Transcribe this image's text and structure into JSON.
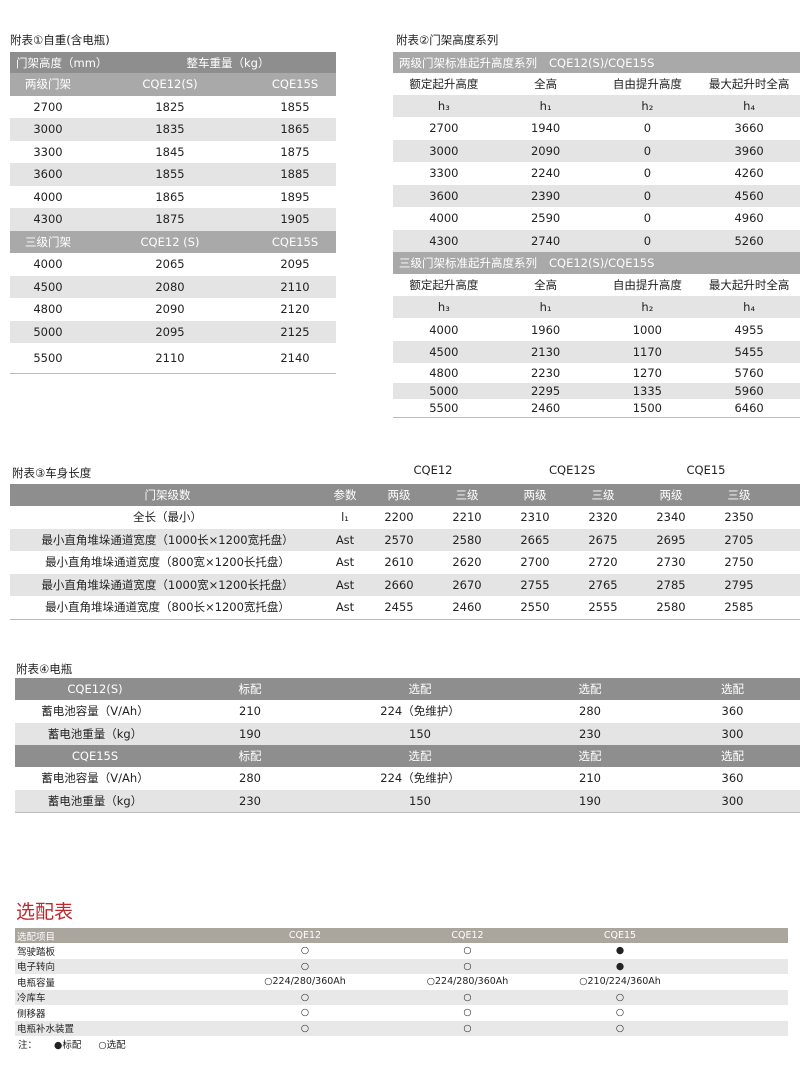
{
  "table1": {
    "title": "附表①自重(含电瓶)",
    "header": [
      "门架高度（mm）",
      "整车重量（kg）"
    ],
    "sections": [
      {
        "columns": [
          "两级门架",
          "CQE12(S)",
          "CQE15S"
        ],
        "rows": [
          [
            "2700",
            "1825",
            "1855"
          ],
          [
            "3000",
            "1835",
            "1865"
          ],
          [
            "3300",
            "1845",
            "1875"
          ],
          [
            "3600",
            "1855",
            "1885"
          ],
          [
            "4000",
            "1865",
            "1895"
          ],
          [
            "4300",
            "1875",
            "1905"
          ]
        ]
      },
      {
        "columns": [
          "三级门架",
          "CQE12 (S)",
          "CQE15S"
        ],
        "rows": [
          [
            "4000",
            "2065",
            "2095"
          ],
          [
            "4500",
            "2080",
            "2110"
          ],
          [
            "4800",
            "2090",
            "2120"
          ],
          [
            "5000",
            "2095",
            "2125"
          ],
          [
            "5500",
            "2110",
            "2140"
          ]
        ]
      }
    ]
  },
  "table2": {
    "title": "附表②门架高度系列",
    "sections": [
      {
        "heading": "两级门架标准起升高度系列",
        "models": "CQE12(S)/CQE15S",
        "columns": [
          "额定起升高度",
          "全高",
          "自由提升高度",
          "最大起升时全高"
        ],
        "symbols": [
          "h₃",
          "h₁",
          "h₂",
          "h₄"
        ],
        "rows": [
          [
            "2700",
            "1940",
            "0",
            "3660"
          ],
          [
            "3000",
            "2090",
            "0",
            "3960"
          ],
          [
            "3300",
            "2240",
            "0",
            "4260"
          ],
          [
            "3600",
            "2390",
            "0",
            "4560"
          ],
          [
            "4000",
            "2590",
            "0",
            "4960"
          ],
          [
            "4300",
            "2740",
            "0",
            "5260"
          ]
        ]
      },
      {
        "heading": "三级门架标准起升高度系列",
        "models": "CQE12(S)/CQE15S",
        "columns": [
          "额定起升高度",
          "全高",
          "自由提升高度",
          "最大起升时全高"
        ],
        "symbols": [
          "h₃",
          "h₁",
          "h₂",
          "h₄"
        ],
        "rows": [
          [
            "4000",
            "1960",
            "1000",
            "4955"
          ],
          [
            "4500",
            "2130",
            "1170",
            "5455"
          ],
          [
            "4800",
            "2230",
            "1270",
            "5760"
          ],
          [
            "5000",
            "2295",
            "1335",
            "5960"
          ],
          [
            "5500",
            "2460",
            "1500",
            "6460"
          ]
        ]
      }
    ]
  },
  "table3": {
    "title": "附表③车身长度",
    "models": [
      "CQE12",
      "CQE12S",
      "CQE15"
    ],
    "columns": [
      "门架级数",
      "参数",
      "两级",
      "三级",
      "两级",
      "三级",
      "两级",
      "三级"
    ],
    "rows": [
      [
        "全长（最小）",
        "l₁",
        "2200",
        "2210",
        "2310",
        "2320",
        "2340",
        "2350"
      ],
      [
        "最小直角堆垛通道宽度（1000长×1200宽托盘）",
        "Ast",
        "2570",
        "2580",
        "2665",
        "2675",
        "2695",
        "2705"
      ],
      [
        "最小直角堆垛通道宽度（800宽×1200长托盘）",
        "Ast",
        "2610",
        "2620",
        "2700",
        "2720",
        "2730",
        "2750"
      ],
      [
        "最小直角堆垛通道宽度（1000宽×1200长托盘）",
        "Ast",
        "2660",
        "2670",
        "2755",
        "2765",
        "2785",
        "2795"
      ],
      [
        "最小直角堆垛通道宽度（800长×1200宽托盘）",
        "Ast",
        "2455",
        "2460",
        "2550",
        "2555",
        "2580",
        "2585"
      ]
    ]
  },
  "table4": {
    "title": "附表④电瓶",
    "sections": [
      {
        "header": [
          "CQE12(S)",
          "标配",
          "选配",
          "选配",
          "选配"
        ],
        "rows": [
          [
            "蓄电池容量（V/Ah）",
            "210",
            "224（免维护）",
            "280",
            "360"
          ],
          [
            "蓄电池重量（kg）",
            "190",
            "150",
            "230",
            "300"
          ]
        ]
      },
      {
        "header": [
          "CQE15S",
          "标配",
          "选配",
          "选配",
          "选配"
        ],
        "rows": [
          [
            "蓄电池容量（V/Ah）",
            "280",
            "224（免维护）",
            "210",
            "360"
          ],
          [
            "蓄电池重量（kg）",
            "230",
            "150",
            "190",
            "300"
          ]
        ]
      }
    ]
  },
  "options": {
    "title": "选配表",
    "columns": [
      "选配项目",
      "CQE12",
      "CQE12",
      "CQE15"
    ],
    "rows": [
      [
        "驾驶踏板",
        "○",
        "○",
        "●"
      ],
      [
        "电子转向",
        "○",
        "○",
        "●"
      ],
      [
        "电瓶容量",
        "○224/280/360Ah",
        "○224/280/360Ah",
        "○210/224/360Ah"
      ],
      [
        "冷库车",
        "○",
        "○",
        "○"
      ],
      [
        "侧移器",
        "○",
        "○",
        "○"
      ],
      [
        "电瓶补水装置",
        "○",
        "○",
        "○"
      ]
    ],
    "note": {
      "label": "注：",
      "standard": "●标配",
      "optional": "○选配"
    }
  }
}
